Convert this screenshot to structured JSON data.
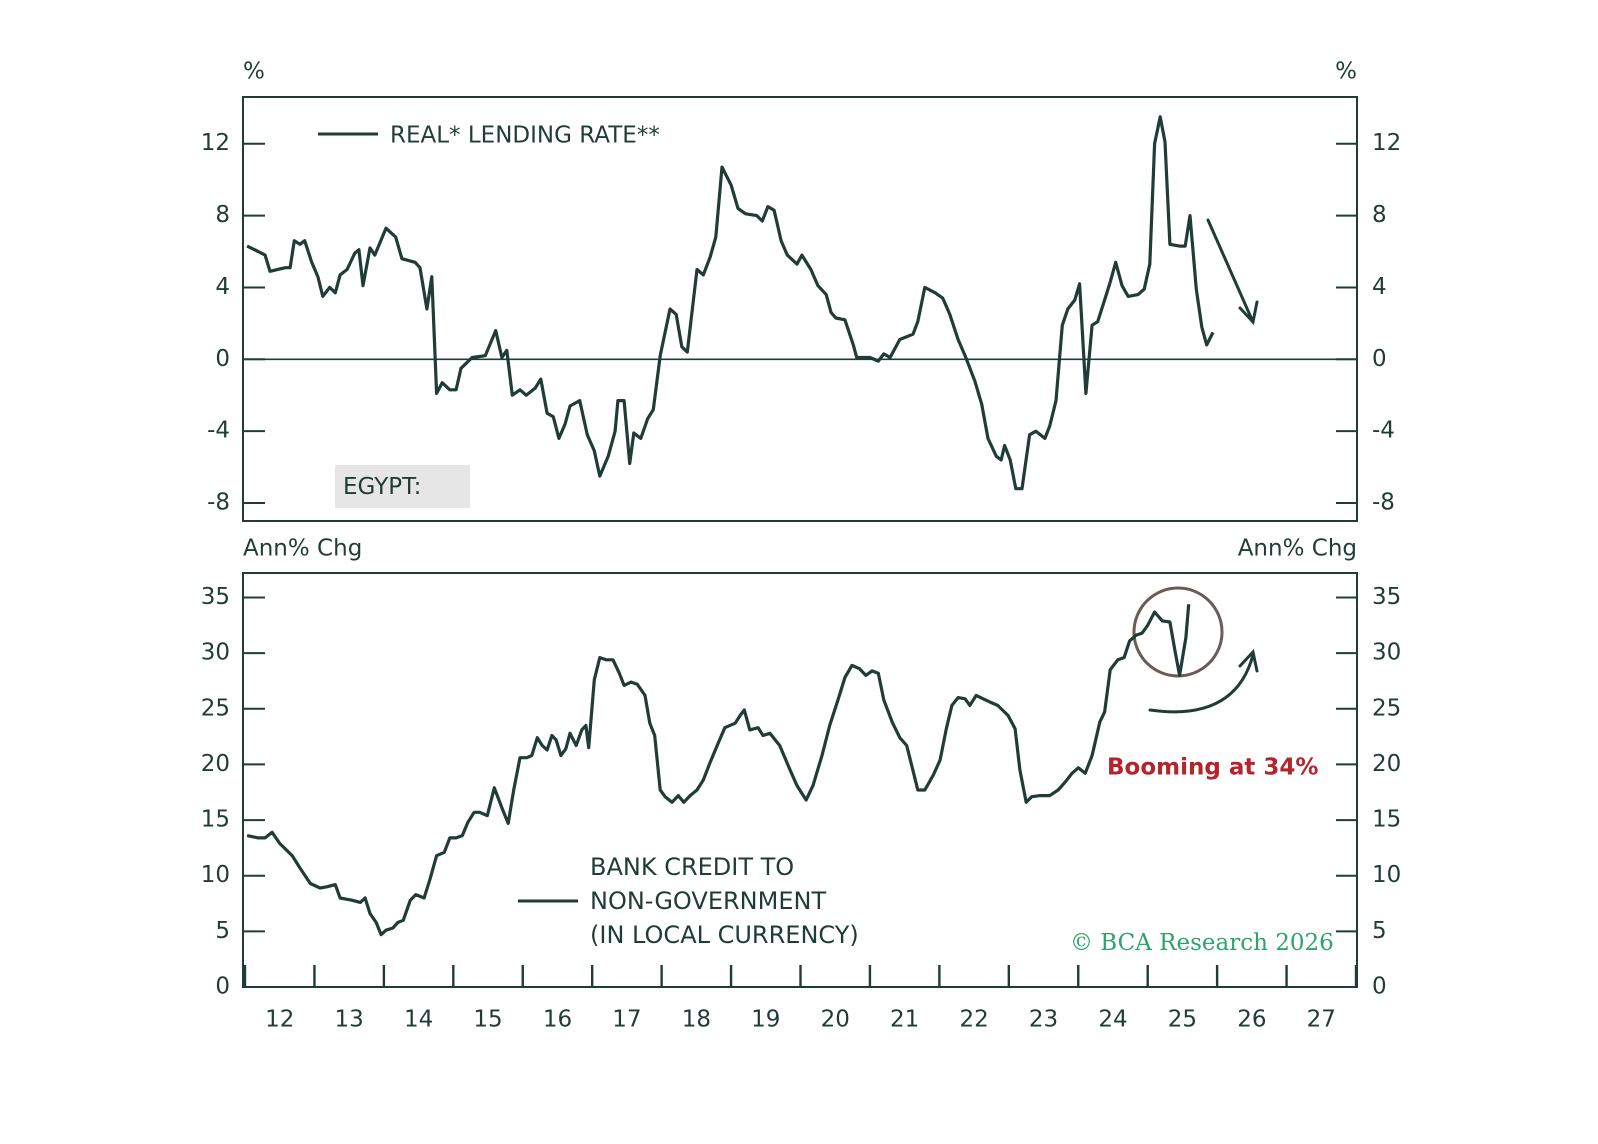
{
  "chart_data": [
    {
      "type": "line",
      "y_unit": "%",
      "label": "EGYPT:",
      "zero_line": true,
      "xlim": [
        2012,
        2028
      ],
      "ylim": [
        -9,
        14.6
      ],
      "yticks": [
        -8,
        -4,
        0,
        4,
        8,
        12
      ],
      "x": [
        2012.03,
        2012.19,
        2012.29,
        2012.36,
        2012.58,
        2012.65,
        2012.71,
        2012.79,
        2012.86,
        2012.96,
        2013.05,
        2013.12,
        2013.22,
        2013.3,
        2013.37,
        2013.47,
        2013.58,
        2013.64,
        2013.7,
        2013.8,
        2013.87,
        2014.03,
        2014.17,
        2014.26,
        2014.45,
        2014.52,
        2014.62,
        2014.69,
        2014.76,
        2014.84,
        2014.95,
        2015.04,
        2015.11,
        2015.27,
        2015.46,
        2015.61,
        2015.7,
        2015.77,
        2015.85,
        2015.96,
        2016.05,
        2016.18,
        2016.26,
        2016.35,
        2016.44,
        2016.52,
        2016.61,
        2016.68,
        2016.82,
        2016.93,
        2017.03,
        2017.11,
        2017.23,
        2017.33,
        2017.37,
        2017.46,
        2017.54,
        2017.6,
        2017.7,
        2017.8,
        2017.88,
        2017.98,
        2018.12,
        2018.21,
        2018.29,
        2018.37,
        2018.51,
        2018.6,
        2018.7,
        2018.78,
        2018.87,
        2019.0,
        2019.1,
        2019.21,
        2019.37,
        2019.45,
        2019.53,
        2019.62,
        2019.72,
        2019.81,
        2019.95,
        2020.02,
        2020.15,
        2020.25,
        2020.37,
        2020.44,
        2020.51,
        2020.64,
        2020.76,
        2020.81,
        2021.0,
        2021.12,
        2021.2,
        2021.29,
        2021.43,
        2021.62,
        2021.69,
        2021.79,
        2021.94,
        2022.05,
        2022.15,
        2022.27,
        2022.37,
        2022.51,
        2022.61,
        2022.7,
        2022.82,
        2022.89,
        2022.94,
        2023.02,
        2023.1,
        2023.19,
        2023.3,
        2023.39,
        2023.52,
        2023.59,
        2023.68,
        2023.77,
        2023.85,
        2023.95,
        2024.02,
        2024.11,
        2024.2,
        2024.28,
        2024.38,
        2024.46,
        2024.54,
        2024.63,
        2024.72,
        2024.86,
        2024.95,
        2025.03,
        2025.1,
        2025.18,
        2025.25,
        2025.32,
        2025.46,
        2025.54,
        2025.61,
        2025.7,
        2025.78,
        2025.85,
        2025.94
      ],
      "series": [
        {
          "name": "REAL* LENDING RATE**",
          "color": "#1f3d36",
          "values": [
            6.3,
            6.0,
            5.8,
            4.9,
            5.1,
            5.1,
            6.6,
            6.4,
            6.6,
            5.4,
            4.6,
            3.5,
            4.0,
            3.7,
            4.7,
            5.0,
            5.9,
            6.1,
            4.1,
            6.2,
            5.8,
            7.3,
            6.8,
            5.6,
            5.4,
            5.1,
            2.8,
            4.6,
            -1.9,
            -1.3,
            -1.7,
            -1.7,
            -0.5,
            0.1,
            0.2,
            1.6,
            0.1,
            0.5,
            -2.0,
            -1.7,
            -2.0,
            -1.6,
            -1.1,
            -3.0,
            -3.2,
            -4.4,
            -3.6,
            -2.6,
            -2.3,
            -4.2,
            -5.1,
            -6.5,
            -5.4,
            -4.0,
            -2.3,
            -2.3,
            -5.8,
            -4.1,
            -4.4,
            -3.3,
            -2.8,
            0.2,
            2.8,
            2.5,
            0.7,
            0.4,
            5.0,
            4.7,
            5.7,
            6.8,
            10.7,
            9.7,
            8.4,
            8.1,
            8.0,
            7.7,
            8.5,
            8.3,
            6.6,
            5.8,
            5.3,
            5.8,
            5.0,
            4.1,
            3.6,
            2.6,
            2.3,
            2.2,
            0.8,
            0.1,
            0.1,
            -0.1,
            0.3,
            0.1,
            1.1,
            1.4,
            2.1,
            4.0,
            3.7,
            3.4,
            2.5,
            1.1,
            0.2,
            -1.2,
            -2.5,
            -4.4,
            -5.4,
            -5.6,
            -4.8,
            -5.6,
            -7.2,
            -7.2,
            -4.2,
            -4.0,
            -4.4,
            -3.7,
            -2.3,
            1.9,
            2.8,
            3.3,
            4.2,
            -1.9,
            1.9,
            2.1,
            3.3,
            4.3,
            5.4,
            4.1,
            3.5,
            3.6,
            3.9,
            5.3,
            12.0,
            13.5,
            12.1,
            6.4,
            6.3,
            6.3,
            8.0,
            3.9,
            1.8,
            0.8,
            1.5
          ]
        }
      ]
    },
    {
      "type": "line",
      "y_unit": "Ann% Chg",
      "annotation": "Booming at 34%",
      "source": "© BCA Research 2026",
      "xlim": [
        2012,
        2028
      ],
      "xticks": [
        {
          "value": 2012.5,
          "label": "12"
        },
        {
          "value": 2013.5,
          "label": "13"
        },
        {
          "value": 2014.5,
          "label": "14"
        },
        {
          "value": 2015.5,
          "label": "15"
        },
        {
          "value": 2016.5,
          "label": "16"
        },
        {
          "value": 2017.5,
          "label": "17"
        },
        {
          "value": 2018.5,
          "label": "18"
        },
        {
          "value": 2019.5,
          "label": "19"
        },
        {
          "value": 2020.5,
          "label": "20"
        },
        {
          "value": 2021.5,
          "label": "21"
        },
        {
          "value": 2022.5,
          "label": "22"
        },
        {
          "value": 2023.5,
          "label": "23"
        },
        {
          "value": 2024.5,
          "label": "24"
        },
        {
          "value": 2025.5,
          "label": "25"
        },
        {
          "value": 2026.5,
          "label": "26"
        },
        {
          "value": 2027.5,
          "label": "27"
        }
      ],
      "xtick_marks": [
        2012,
        2013,
        2014,
        2015,
        2016,
        2017,
        2018,
        2019,
        2020,
        2021,
        2022,
        2023,
        2024,
        2025,
        2026,
        2027,
        2028
      ],
      "ylim": [
        0,
        37.2
      ],
      "yticks": [
        0,
        5,
        10,
        15,
        20,
        25,
        30,
        35
      ],
      "x": [
        2012.03,
        2012.19,
        2012.29,
        2012.39,
        2012.5,
        2012.68,
        2012.79,
        2012.94,
        2013.08,
        2013.18,
        2013.3,
        2013.37,
        2013.54,
        2013.66,
        2013.73,
        2013.8,
        2013.89,
        2013.96,
        2014.03,
        2014.13,
        2014.2,
        2014.28,
        2014.38,
        2014.46,
        2014.58,
        2014.66,
        2014.76,
        2014.87,
        2014.95,
        2015.04,
        2015.13,
        2015.21,
        2015.3,
        2015.38,
        2015.49,
        2015.59,
        2015.7,
        2015.79,
        2015.87,
        2015.96,
        2016.06,
        2016.13,
        2016.21,
        2016.28,
        2016.35,
        2016.42,
        2016.48,
        2016.55,
        2016.62,
        2016.68,
        2016.77,
        2016.85,
        2016.91,
        2016.95,
        2017.03,
        2017.11,
        2017.2,
        2017.3,
        2017.39,
        2017.46,
        2017.56,
        2017.65,
        2017.76,
        2017.83,
        2017.9,
        2017.98,
        2018.05,
        2018.15,
        2018.24,
        2018.32,
        2018.41,
        2018.51,
        2018.6,
        2018.7,
        2018.8,
        2018.91,
        2019.06,
        2019.13,
        2019.19,
        2019.27,
        2019.39,
        2019.46,
        2019.56,
        2019.7,
        2019.85,
        2019.95,
        2020.08,
        2020.18,
        2020.31,
        2020.42,
        2020.54,
        2020.64,
        2020.74,
        2020.85,
        2020.94,
        2021.03,
        2021.12,
        2021.2,
        2021.32,
        2021.43,
        2021.53,
        2021.61,
        2021.69,
        2021.79,
        2021.91,
        2022.01,
        2022.1,
        2022.18,
        2022.27,
        2022.37,
        2022.44,
        2022.53,
        2022.63,
        2022.73,
        2022.84,
        2022.99,
        2023.09,
        2023.16,
        2023.25,
        2023.33,
        2023.45,
        2023.59,
        2023.71,
        2023.81,
        2023.91,
        2024.0,
        2024.1,
        2024.2,
        2024.31,
        2024.38,
        2024.46,
        2024.57,
        2024.66,
        2024.74,
        2024.83,
        2024.92,
        2025.0,
        2025.1,
        2025.21,
        2025.32,
        2025.39,
        2025.46,
        2025.55,
        2025.59
      ],
      "series": [
        {
          "name": "BANK CREDIT TO\nNON-GOVERNMENT\n(IN LOCAL CURRENCY)",
          "color": "#1f3d36",
          "values": [
            13.6,
            13.4,
            13.4,
            13.9,
            12.9,
            11.8,
            10.7,
            9.3,
            8.9,
            9.0,
            9.2,
            8.0,
            7.8,
            7.6,
            8.0,
            6.6,
            5.8,
            4.7,
            5.1,
            5.3,
            5.8,
            6.0,
            7.8,
            8.3,
            8.0,
            9.6,
            11.8,
            12.1,
            13.4,
            13.4,
            13.6,
            14.8,
            15.7,
            15.7,
            15.4,
            17.9,
            16.1,
            14.7,
            17.7,
            20.6,
            20.6,
            20.8,
            22.4,
            21.7,
            21.3,
            22.6,
            22.2,
            20.8,
            21.4,
            22.8,
            21.7,
            23.1,
            23.5,
            21.5,
            27.6,
            29.6,
            29.4,
            29.4,
            28.2,
            27.1,
            27.4,
            27.2,
            26.2,
            23.7,
            22.6,
            17.7,
            17.1,
            16.6,
            17.2,
            16.6,
            17.2,
            17.7,
            18.6,
            20.2,
            21.7,
            23.3,
            23.7,
            24.4,
            24.9,
            23.1,
            23.3,
            22.6,
            22.8,
            21.7,
            19.5,
            18.1,
            16.8,
            18.1,
            20.8,
            23.5,
            25.8,
            27.8,
            28.9,
            28.6,
            28.0,
            28.4,
            28.2,
            25.8,
            23.8,
            22.4,
            21.7,
            19.7,
            17.7,
            17.7,
            19.0,
            20.4,
            23.2,
            25.3,
            26.0,
            25.9,
            25.3,
            26.2,
            25.9,
            25.6,
            25.3,
            24.4,
            23.2,
            19.5,
            16.6,
            17.1,
            17.2,
            17.2,
            17.7,
            18.4,
            19.2,
            19.7,
            19.2,
            20.8,
            23.8,
            24.7,
            28.5,
            29.4,
            29.6,
            31.1,
            31.6,
            31.8,
            32.5,
            33.7,
            32.9,
            32.8,
            30.3,
            28.0,
            31.4,
            34.4
          ]
        }
      ]
    }
  ]
}
